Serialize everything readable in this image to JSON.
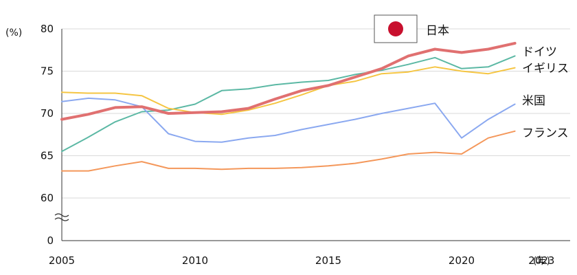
{
  "chart_data": {
    "type": "line",
    "y_unit_label": "(%)",
    "x_unit_label": "(年)",
    "x": [
      2005,
      2006,
      2007,
      2008,
      2009,
      2010,
      2011,
      2012,
      2013,
      2014,
      2015,
      2016,
      2017,
      2018,
      2019,
      2020,
      2021,
      2022,
      2023
    ],
    "x_tick_labels": [
      "2005",
      "2010",
      "2015",
      "2020",
      "2023"
    ],
    "y_tick_labels": [
      "0",
      "60",
      "65",
      "70",
      "75",
      "80"
    ],
    "ylim": [
      60,
      80
    ],
    "y_axis_break": true,
    "grid": true,
    "series": [
      {
        "name": "日本",
        "color": "#e07070",
        "highlight": true,
        "values": [
          69.3,
          69.9,
          70.7,
          70.8,
          70.0,
          70.1,
          70.2,
          70.6,
          71.7,
          72.7,
          73.3,
          74.3,
          75.3,
          76.8,
          77.6,
          77.2,
          77.6,
          78.3,
          null
        ]
      },
      {
        "name": "ドイツ",
        "color": "#5bb8a4",
        "values": [
          65.5,
          67.2,
          69.0,
          70.2,
          70.4,
          71.1,
          72.7,
          72.9,
          73.4,
          73.7,
          73.9,
          74.6,
          75.1,
          75.8,
          76.6,
          75.3,
          75.5,
          76.8,
          null
        ]
      },
      {
        "name": "イギリス",
        "color": "#f5c542",
        "values": [
          72.5,
          72.4,
          72.4,
          72.1,
          70.6,
          70.1,
          69.9,
          70.4,
          71.2,
          72.2,
          73.3,
          73.8,
          74.7,
          74.9,
          75.5,
          75.0,
          74.7,
          75.4,
          null
        ]
      },
      {
        "name": "米国",
        "color": "#8aa8f0",
        "values": [
          71.4,
          71.8,
          71.6,
          70.8,
          67.6,
          66.7,
          66.6,
          67.1,
          67.4,
          68.1,
          68.7,
          69.3,
          70.0,
          70.6,
          71.2,
          67.1,
          69.3,
          71.1,
          null
        ]
      },
      {
        "name": "フランス",
        "color": "#f4975a",
        "values": [
          63.2,
          63.2,
          63.8,
          64.3,
          63.5,
          63.5,
          63.4,
          63.5,
          63.5,
          63.6,
          63.8,
          64.1,
          64.6,
          65.2,
          65.4,
          65.2,
          67.1,
          67.9,
          null
        ]
      }
    ]
  }
}
